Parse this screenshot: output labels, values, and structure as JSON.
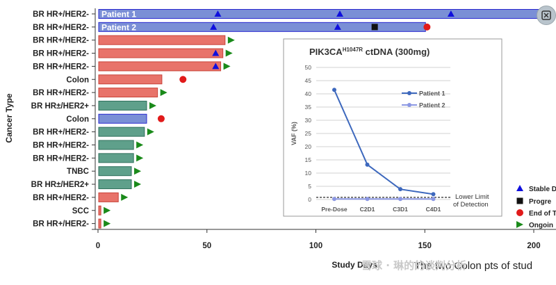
{
  "chart_data": {
    "type": "swimmer",
    "ylabel": "Cancer Type",
    "xlabel": "Study Days",
    "xlim": [
      0,
      200
    ],
    "xticks": [
      0,
      50,
      100,
      150,
      200
    ],
    "colors": {
      "HR+/HER2-": "#e8736a",
      "HR±/HER2+": "#5fa08b",
      "Colon": "#7a8fd6",
      "patient": "#7a8fd6",
      "stable": "#1010dd",
      "progression": "#111111",
      "end": "#e11a1a",
      "ongoing": "#1a8a1a"
    },
    "rows": [
      {
        "label": "BR HR+/HER2-",
        "days": 205,
        "color": "#7a8fd6",
        "tag": "Patient 1",
        "stable": [
          55,
          111,
          162
        ],
        "progression": [],
        "end": [],
        "ongoing": false
      },
      {
        "label": "BR HR+/HER2-",
        "days": 150,
        "color": "#7a8fd6",
        "tag": "Patient 2",
        "stable": [
          53,
          110
        ],
        "progression": [
          127
        ],
        "end": [
          151
        ],
        "ongoing": false
      },
      {
        "label": "BR HR+/HER2-",
        "days": 58,
        "color": "#e8736a",
        "tag": "",
        "stable": [],
        "progression": [],
        "end": [],
        "ongoing": true
      },
      {
        "label": "BR HR+/HER2-",
        "days": 57,
        "color": "#e8736a",
        "tag": "",
        "stable": [
          54
        ],
        "progression": [],
        "end": [],
        "ongoing": true
      },
      {
        "label": "BR HR+/HER2-",
        "days": 56,
        "color": "#e8736a",
        "tag": "",
        "stable": [
          54
        ],
        "progression": [],
        "end": [],
        "ongoing": true
      },
      {
        "label": "Colon",
        "days": 29,
        "color": "#e8736a",
        "tag": "",
        "stable": [],
        "progression": [],
        "end": [
          39
        ],
        "ongoing": false
      },
      {
        "label": "BR HR+/HER2-",
        "days": 27,
        "color": "#e8736a",
        "tag": "",
        "stable": [],
        "progression": [],
        "end": [],
        "ongoing": true
      },
      {
        "label": "BR HR±/HER2+",
        "days": 22,
        "color": "#5fa08b",
        "tag": "",
        "stable": [],
        "progression": [],
        "end": [],
        "ongoing": true
      },
      {
        "label": "Colon",
        "days": 22,
        "color": "#7a8fd6",
        "tag": "",
        "stable": [],
        "progression": [],
        "end": [
          29
        ],
        "ongoing": false
      },
      {
        "label": "BR HR+/HER2-",
        "days": 21,
        "color": "#5fa08b",
        "tag": "",
        "stable": [],
        "progression": [],
        "end": [],
        "ongoing": true
      },
      {
        "label": "BR HR+/HER2-",
        "days": 16,
        "color": "#5fa08b",
        "tag": "",
        "stable": [],
        "progression": [],
        "end": [],
        "ongoing": true
      },
      {
        "label": "BR HR+/HER2-",
        "days": 16,
        "color": "#5fa08b",
        "tag": "",
        "stable": [],
        "progression": [],
        "end": [],
        "ongoing": true
      },
      {
        "label": "TNBC",
        "days": 15,
        "color": "#5fa08b",
        "tag": "",
        "stable": [],
        "progression": [],
        "end": [],
        "ongoing": true
      },
      {
        "label": "BR HR±/HER2+",
        "days": 15,
        "color": "#5fa08b",
        "tag": "",
        "stable": [],
        "progression": [],
        "end": [],
        "ongoing": true
      },
      {
        "label": "BR HR+/HER2-",
        "days": 9,
        "color": "#e8736a",
        "tag": "",
        "stable": [],
        "progression": [],
        "end": [],
        "ongoing": true
      },
      {
        "label": "SCC",
        "days": 1,
        "color": "#e8736a",
        "tag": "",
        "stable": [],
        "progression": [],
        "end": [],
        "ongoing": true
      },
      {
        "label": "BR HR+/HER2-",
        "days": 1,
        "color": "#e8736a",
        "tag": "",
        "stable": [],
        "progression": [],
        "end": [],
        "ongoing": true
      }
    ],
    "legend": [
      {
        "key": "stable",
        "label": "Stable D"
      },
      {
        "key": "progression",
        "label": "Progre"
      },
      {
        "key": "end",
        "label": "End of T"
      },
      {
        "key": "ongoing",
        "label": "Ongoin"
      }
    ],
    "inset": {
      "type": "line",
      "title": "PIK3CA",
      "title_sup": "H1047R",
      "title_suffix": " ctDNA (300mg)",
      "ylabel": "VAF (%)",
      "ylim": [
        0,
        50
      ],
      "yticks": [
        0,
        5,
        10,
        15,
        20,
        25,
        30,
        35,
        40,
        45,
        50
      ],
      "categories": [
        "Pre-Dose",
        "C2D1",
        "C3D1",
        "C4D1"
      ],
      "series": [
        {
          "name": "Patient 1",
          "color": "#3d68bd",
          "values": [
            41.5,
            13.2,
            3.9,
            2.0
          ]
        },
        {
          "name": "Patient 2",
          "color": "#8b97e3",
          "values": [
            0.2,
            0.2,
            0.2,
            0.2
          ]
        }
      ],
      "lod_line1": "Lower  Limit",
      "lod_line2": "of Detection",
      "lod_value": 0.8
    }
  },
  "footer": {
    "overlay_text": "The two Colon pts of stud",
    "watermark": "雪球 · 琳的的谈判分析"
  },
  "close_icon": "close-icon"
}
